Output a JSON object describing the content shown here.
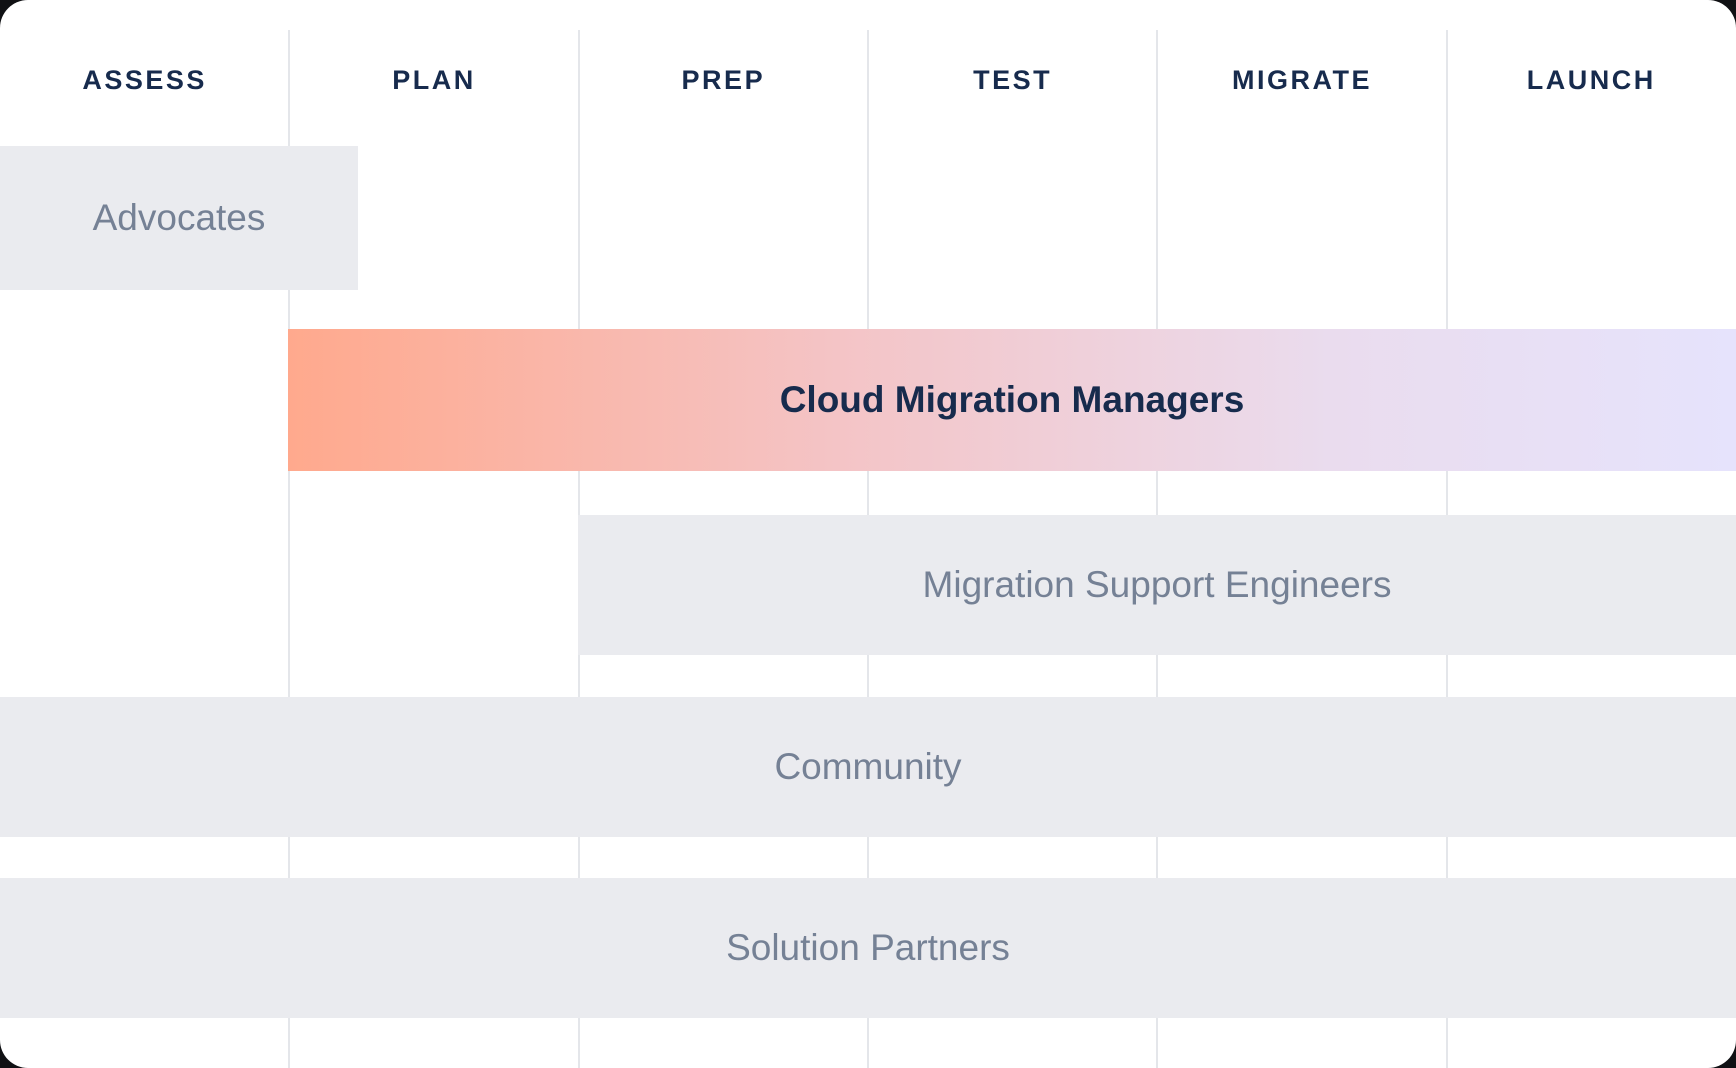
{
  "phases": [
    {
      "label": "ASSESS"
    },
    {
      "label": "PLAN"
    },
    {
      "label": "PREP"
    },
    {
      "label": "TEST"
    },
    {
      "label": "MIGRATE"
    },
    {
      "label": "LAUNCH"
    }
  ],
  "resources": [
    {
      "label": "Advocates",
      "span": "ASSESS",
      "style": "gray"
    },
    {
      "label": "Cloud Migration Managers",
      "span": "PLAN-LAUNCH",
      "style": "gradient"
    },
    {
      "label": "Migration Support Engineers",
      "span": "PREP-LAUNCH",
      "style": "gray"
    },
    {
      "label": "Community",
      "span": "ASSESS-LAUNCH",
      "style": "gray"
    },
    {
      "label": "Solution Partners",
      "span": "ASSESS-LAUNCH",
      "style": "gray"
    }
  ],
  "colors": {
    "header_text": "#172b4d",
    "bar_gray": "#eaebef",
    "bar_text": "#758195",
    "gradient_start": "#ffa98d",
    "gradient_end": "#e6e3fc",
    "grid_line": "#e4e6ea"
  }
}
